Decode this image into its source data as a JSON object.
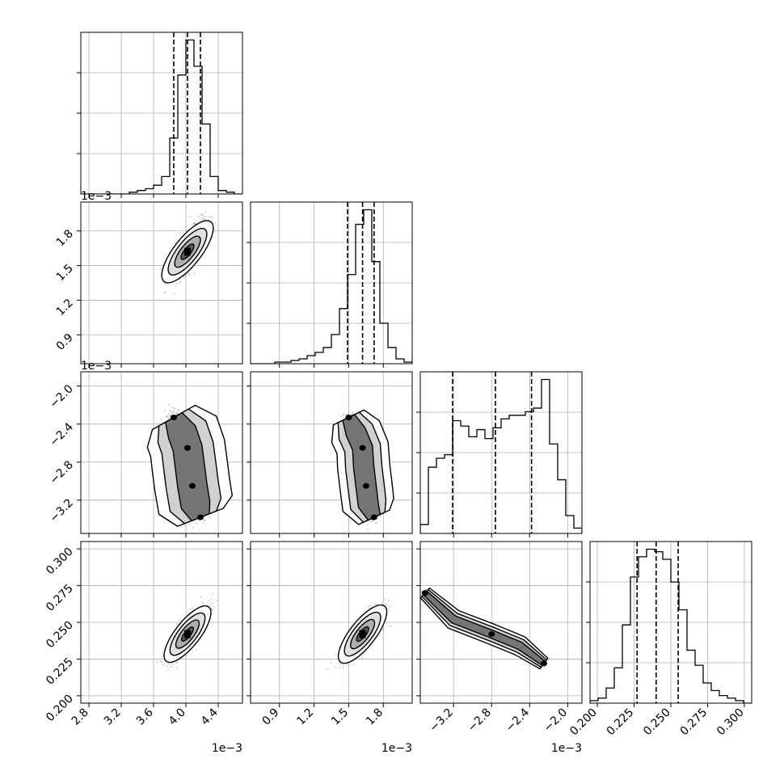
{
  "chart_data": {
    "type": "corner",
    "title": "",
    "grid": true,
    "parameters": [
      {
        "name": "",
        "range": [
          2.7,
          4.7
        ],
        "ticks": [
          2.8,
          3.2,
          3.6,
          4.0,
          4.4
        ],
        "tick_labels": [
          "2.8",
          "3.2",
          "3.6",
          "4.0",
          "4.4"
        ],
        "offset_label": "1e−3",
        "quantiles": [
          3.85,
          4.02,
          4.18
        ],
        "histogram": [
          0,
          0,
          0,
          0,
          0,
          0,
          1,
          2,
          3,
          5,
          10,
          32,
          68,
          88,
          73,
          40,
          10,
          2,
          1,
          0
        ]
      },
      {
        "name": "",
        "range": [
          0.65,
          2.05
        ],
        "ticks": [
          0.9,
          1.2,
          1.5,
          1.8
        ],
        "tick_labels": [
          "0.9",
          "1.2",
          "1.5",
          "1.8"
        ],
        "offset_label": "1e−3",
        "quantiles": [
          1.49,
          1.62,
          1.72
        ],
        "histogram": [
          0,
          0,
          0,
          1,
          1,
          2,
          3,
          5,
          7,
          10,
          18,
          34,
          55,
          86,
          95,
          63,
          25,
          10,
          3,
          1
        ]
      },
      {
        "name": "",
        "range": [
          -3.55,
          -1.85
        ],
        "ticks": [
          -3.2,
          -2.8,
          -2.4,
          -2.0
        ],
        "tick_labels": [
          "−3.2",
          "−2.8",
          "−2.4",
          "−2.0"
        ],
        "offset_label": "1e−3",
        "quantiles": [
          -3.21,
          -2.76,
          -2.38
        ],
        "histogram": [
          5,
          37,
          42,
          44,
          63,
          60,
          54,
          58,
          53,
          59,
          64,
          66,
          66,
          68,
          70,
          86,
          50,
          30,
          10,
          3
        ]
      },
      {
        "name": "",
        "range": [
          0.195,
          0.305
        ],
        "ticks": [
          0.2,
          0.225,
          0.25,
          0.275,
          0.3
        ],
        "tick_labels": [
          "0.200",
          "0.225",
          "0.250",
          "0.275",
          "0.300"
        ],
        "offset_label": "",
        "quantiles": [
          0.227,
          0.24,
          0.255
        ],
        "histogram": [
          1,
          2,
          6,
          14,
          31,
          50,
          58,
          61,
          60,
          57,
          48,
          37,
          21,
          15,
          8,
          5,
          3,
          2,
          1,
          0
        ]
      }
    ],
    "pairs": [
      {
        "x_param": 0,
        "y_param": 1,
        "center": [
          4.02,
          1.62
        ],
        "sigma": [
          0.2,
          0.18
        ],
        "rotation_deg": 52,
        "contour_levels": [
          0.5,
          1.0,
          1.5,
          2.0
        ]
      },
      {
        "x_param": 0,
        "y_param": 2,
        "shape": "curved-band",
        "path": [
          [
            3.85,
            -2.33
          ],
          [
            3.95,
            -2.48
          ],
          [
            4.02,
            -2.65
          ],
          [
            4.05,
            -2.85
          ],
          [
            4.08,
            -3.05
          ],
          [
            4.12,
            -3.25
          ],
          [
            4.18,
            -3.38
          ]
        ],
        "width": 0.13
      },
      {
        "x_param": 1,
        "y_param": 2,
        "shape": "curved-band",
        "path": [
          [
            1.5,
            -2.33
          ],
          [
            1.56,
            -2.48
          ],
          [
            1.62,
            -2.65
          ],
          [
            1.63,
            -2.85
          ],
          [
            1.65,
            -3.05
          ],
          [
            1.67,
            -3.25
          ],
          [
            1.72,
            -3.38
          ]
        ],
        "width": 0.09
      },
      {
        "x_param": 0,
        "y_param": 3,
        "center": [
          4.02,
          0.242
        ],
        "sigma": [
          0.2,
          0.012
        ],
        "rotation_deg": 52,
        "contour_levels": [
          0.5,
          1.0,
          1.5,
          2.0
        ]
      },
      {
        "x_param": 1,
        "y_param": 3,
        "center": [
          1.62,
          0.242
        ],
        "sigma": [
          0.15,
          0.012
        ],
        "rotation_deg": 52,
        "contour_levels": [
          0.5,
          1.0,
          1.5,
          2.0
        ]
      },
      {
        "x_param": 2,
        "y_param": 3,
        "shape": "linear-band",
        "path": [
          [
            -3.5,
            0.27
          ],
          [
            -3.2,
            0.252
          ],
          [
            -2.8,
            0.242
          ],
          [
            -2.5,
            0.234
          ],
          [
            -2.25,
            0.222
          ]
        ],
        "width": 0.035
      }
    ]
  }
}
